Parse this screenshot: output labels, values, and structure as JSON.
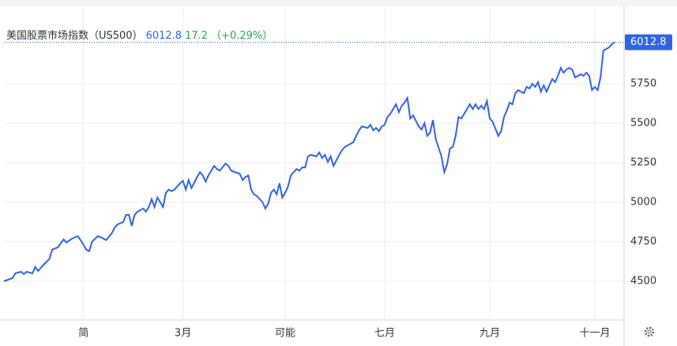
{
  "chart_data": {
    "type": "line",
    "title": "美国股票市场指数（US500）",
    "price": "6012.8",
    "change": "17.2",
    "change_pct": "（+0.29%）",
    "color": "#2f63e6",
    "grid": true,
    "xlim": [
      0,
      218
    ],
    "ylim": [
      4255,
      6230
    ],
    "yticks": [
      4500,
      4750,
      5000,
      5250,
      5500,
      5750
    ],
    "xticks": [
      {
        "value": 28,
        "label": "简"
      },
      {
        "value": 63,
        "label": "3月"
      },
      {
        "value": 99,
        "label": "可能"
      },
      {
        "value": 134,
        "label": "七月"
      },
      {
        "value": 171,
        "label": "九月"
      },
      {
        "value": 208,
        "label": "十一月"
      }
    ],
    "x": [
      0,
      3,
      4,
      6,
      7,
      8,
      10,
      11,
      12,
      14,
      16,
      17,
      19,
      20,
      21,
      22,
      24,
      26,
      27,
      29,
      30,
      31,
      33,
      34,
      36,
      38,
      39,
      40,
      42,
      43,
      44,
      45,
      46,
      47,
      49,
      50,
      51,
      52,
      53,
      54,
      56,
      57,
      58,
      59,
      60,
      62,
      63,
      64,
      65,
      66,
      68,
      69,
      70,
      71,
      72,
      73,
      74,
      75,
      76,
      78,
      79,
      80,
      83,
      84,
      85,
      86,
      87,
      88,
      89,
      91,
      92,
      93,
      94,
      95,
      96,
      97,
      98,
      99,
      100,
      101,
      103,
      104,
      105,
      106,
      107,
      108,
      110,
      111,
      112,
      113,
      114,
      115,
      116,
      118,
      119,
      120,
      121,
      123,
      124,
      125,
      126,
      128,
      129,
      130,
      131,
      132,
      133,
      134,
      135,
      136,
      138,
      139,
      140,
      141,
      142,
      143,
      144,
      146,
      147,
      148,
      149,
      150,
      151,
      152,
      154,
      155,
      156,
      157,
      158,
      159,
      160,
      161,
      163,
      164,
      165,
      166,
      167,
      168,
      169,
      170,
      171,
      172,
      174,
      175,
      176,
      177,
      178,
      179,
      180,
      181,
      183,
      184,
      185,
      186,
      187,
      188,
      189,
      190,
      191,
      193,
      194,
      195,
      196,
      197,
      198,
      199,
      200,
      201,
      203,
      204,
      205,
      206,
      207,
      208,
      209,
      210,
      211,
      213,
      214,
      215
    ],
    "values": [
      4500,
      4520,
      4550,
      4560,
      4545,
      4560,
      4550,
      4590,
      4565,
      4605,
      4640,
      4700,
      4715,
      4740,
      4765,
      4745,
      4770,
      4785,
      4760,
      4700,
      4690,
      4750,
      4785,
      4780,
      4760,
      4805,
      4840,
      4860,
      4875,
      4920,
      4920,
      4850,
      4920,
      4940,
      4960,
      4940,
      4970,
      5020,
      4970,
      5030,
      4970,
      5060,
      5080,
      5070,
      5080,
      5120,
      5135,
      5080,
      5140,
      5090,
      5160,
      5190,
      5170,
      5130,
      5170,
      5200,
      5230,
      5210,
      5200,
      5245,
      5230,
      5200,
      5180,
      5140,
      5160,
      5170,
      5080,
      5050,
      5040,
      5000,
      4960,
      4990,
      5060,
      5080,
      5050,
      5120,
      5030,
      5060,
      5100,
      5170,
      5210,
      5200,
      5220,
      5220,
      5290,
      5300,
      5290,
      5315,
      5280,
      5300,
      5255,
      5290,
      5230,
      5300,
      5330,
      5350,
      5360,
      5380,
      5420,
      5455,
      5480,
      5470,
      5490,
      5455,
      5470,
      5450,
      5480,
      5490,
      5540,
      5560,
      5620,
      5570,
      5610,
      5630,
      5660,
      5530,
      5550,
      5480,
      5460,
      5500,
      5420,
      5440,
      5520,
      5400,
      5290,
      5190,
      5240,
      5340,
      5350,
      5420,
      5540,
      5530,
      5590,
      5620,
      5590,
      5620,
      5590,
      5610,
      5590,
      5640,
      5530,
      5510,
      5420,
      5450,
      5540,
      5580,
      5630,
      5620,
      5690,
      5710,
      5690,
      5730,
      5720,
      5750,
      5730,
      5760,
      5700,
      5740,
      5700,
      5780,
      5760,
      5800,
      5850,
      5820,
      5840,
      5850,
      5840,
      5790,
      5810,
      5800,
      5820,
      5800,
      5710,
      5730,
      5710,
      5790,
      5960,
      5980,
      6000,
      6012.8
    ]
  }
}
